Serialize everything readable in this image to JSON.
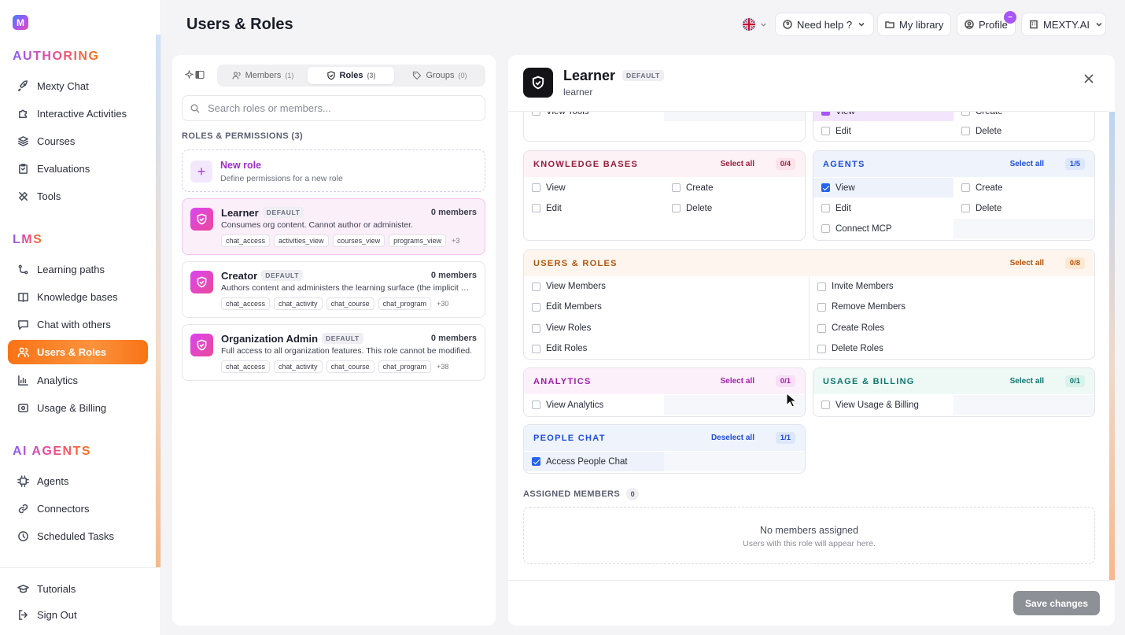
{
  "app": {
    "logo_letter": "M",
    "page_title": "Users & Roles"
  },
  "sidebar": {
    "authoring_title": "AUTHORING",
    "authoring": [
      {
        "label": "Mexty Chat",
        "icon": "rocket-icon"
      },
      {
        "label": "Interactive Activities",
        "icon": "puzzle-icon"
      },
      {
        "label": "Courses",
        "icon": "layers-icon"
      },
      {
        "label": "Evaluations",
        "icon": "clipboard-icon"
      },
      {
        "label": "Tools",
        "icon": "tools-icon"
      }
    ],
    "lms_title": "LMS",
    "lms": [
      {
        "label": "Learning paths",
        "icon": "path-icon"
      },
      {
        "label": "Knowledge bases",
        "icon": "book-icon"
      },
      {
        "label": "Chat with others",
        "icon": "chat-icon"
      },
      {
        "label": "Users & Roles",
        "icon": "users-icon",
        "active": true
      },
      {
        "label": "Analytics",
        "icon": "chart-icon"
      },
      {
        "label": "Usage & Billing",
        "icon": "billing-icon"
      }
    ],
    "ai_title": "AI AGENTS",
    "ai": [
      {
        "label": "Agents",
        "icon": "chip-icon"
      },
      {
        "label": "Connectors",
        "icon": "link-icon"
      },
      {
        "label": "Scheduled Tasks",
        "icon": "clock-icon"
      }
    ],
    "footer": [
      {
        "label": "Tutorials",
        "icon": "graduation-icon"
      },
      {
        "label": "Sign Out",
        "icon": "sign-out-icon"
      }
    ]
  },
  "topbar": {
    "help_label": "Need help ?",
    "library_label": "My library",
    "profile_label": "Profile",
    "profile_badge": "−",
    "org_label": "MEXTY.AI"
  },
  "left_panel": {
    "tabs": [
      {
        "label": "Members",
        "count": "(1)"
      },
      {
        "label": "Roles",
        "count": "(3)",
        "active": true
      },
      {
        "label": "Groups",
        "count": "(0)"
      }
    ],
    "search_placeholder": "Search roles or members...",
    "section_label": "ROLES & PERMISSIONS (3)",
    "new_role": {
      "title": "New role",
      "subtitle": "Define permissions for a new role",
      "plus": "+"
    },
    "roles": [
      {
        "name": "Learner",
        "badge": "DEFAULT",
        "members": "0 members",
        "desc": "Consumes org content. Cannot author or administer.",
        "chips": [
          "chat_access",
          "activities_view",
          "courses_view",
          "programs_view"
        ],
        "more": "+3",
        "selected": true
      },
      {
        "name": "Creator",
        "badge": "DEFAULT",
        "members": "0 members",
        "desc": "Authors content and administers the learning surface (the implicit default role for new members).",
        "chips": [
          "chat_access",
          "chat_activity",
          "chat_course",
          "chat_program"
        ],
        "more": "+30"
      },
      {
        "name": "Organization Admin",
        "badge": "DEFAULT",
        "members": "0 members",
        "desc": "Full access to all organization features. This role cannot be modified.",
        "chips": [
          "chat_access",
          "chat_activity",
          "chat_course",
          "chat_program"
        ],
        "more": "+38"
      }
    ]
  },
  "detail": {
    "title": "Learner",
    "badge": "DEFAULT",
    "subtitle": "learner",
    "partial_top": {
      "left": "View Tools",
      "right_top": [
        "View",
        "Create"
      ],
      "right_bottom": [
        "Edit",
        "Delete"
      ]
    },
    "groups": {
      "knowledge": {
        "title": "KNOWLEDGE BASES",
        "select": "Select all",
        "count": "0/4",
        "perms": [
          "View",
          "Create",
          "Edit",
          "Delete"
        ],
        "color": "#9b1c3b"
      },
      "agents": {
        "title": "AGENTS",
        "select": "Select all",
        "count": "1/5",
        "perms": [
          "View",
          "Create",
          "Edit",
          "Delete",
          "Connect MCP"
        ],
        "color": "#1d4ed8"
      },
      "users": {
        "title": "USERS & ROLES",
        "select": "Select all",
        "count": "0/8",
        "perms": [
          "View Members",
          "Invite Members",
          "Edit Members",
          "Remove Members",
          "View Roles",
          "Create Roles",
          "Edit Roles",
          "Delete Roles"
        ],
        "color": "#b45309"
      },
      "analytics": {
        "title": "ANALYTICS",
        "select": "Select all",
        "count": "0/1",
        "perms": [
          "View Analytics"
        ],
        "color": "#a21caf"
      },
      "billing": {
        "title": "USAGE & BILLING",
        "select": "Select all",
        "count": "0/1",
        "perms": [
          "View Usage & Billing"
        ],
        "color": "#0f766e"
      },
      "people": {
        "title": "PEOPLE CHAT",
        "select": "Deselect all",
        "count": "1/1",
        "perms": [
          "Access People Chat"
        ],
        "color": "#1d4ed8"
      }
    },
    "assigned_label": "ASSIGNED MEMBERS",
    "assigned_count": "0",
    "empty_title": "No members assigned",
    "empty_sub": "Users with this role will appear here.",
    "save_label": "Save changes"
  }
}
